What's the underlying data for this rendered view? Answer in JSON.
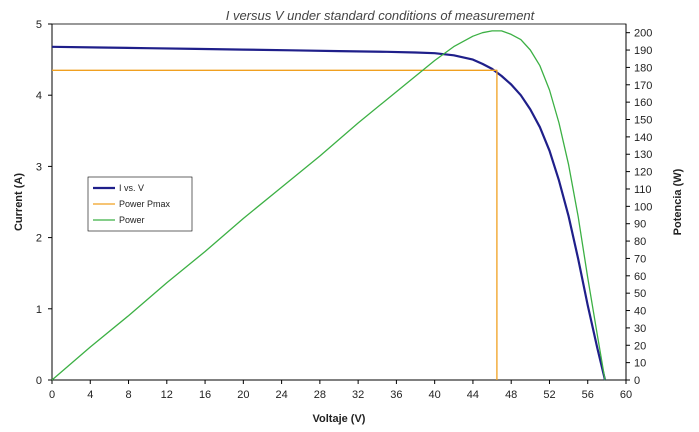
{
  "chart_data": {
    "type": "line",
    "title": "I versus V under standard conditions of measurement",
    "xlabel": "Voltaje (V)",
    "ylabel": "Current (A)",
    "y2label": "Potencia (W)",
    "xlim": [
      0,
      60
    ],
    "ylim": [
      0,
      5
    ],
    "y2lim": [
      0,
      205
    ],
    "x_ticks": [
      "0",
      "4",
      "8",
      "12",
      "16",
      "20",
      "24",
      "28",
      "32",
      "36",
      "40",
      "44",
      "48",
      "52",
      "56",
      "60"
    ],
    "y_ticks": [
      "0",
      "1",
      "2",
      "3",
      "4",
      "5"
    ],
    "y2_ticks": [
      "0",
      "10",
      "20",
      "30",
      "40",
      "50",
      "60",
      "70",
      "80",
      "90",
      "100",
      "110",
      "120",
      "130",
      "140",
      "150",
      "160",
      "170",
      "180",
      "190",
      "200"
    ],
    "grid": false,
    "legend_position": "left-middle",
    "series": [
      {
        "name": "I vs. V",
        "axis": "left",
        "color": "#1f1f8a",
        "x": [
          0,
          5,
          10,
          15,
          20,
          25,
          30,
          35,
          38,
          40,
          42,
          44,
          45,
          46,
          47,
          48,
          49,
          50,
          51,
          52,
          53,
          54,
          55,
          56,
          57,
          57.8
        ],
        "y": [
          4.68,
          4.67,
          4.66,
          4.65,
          4.64,
          4.63,
          4.62,
          4.61,
          4.6,
          4.59,
          4.56,
          4.5,
          4.44,
          4.37,
          4.27,
          4.15,
          4.0,
          3.8,
          3.55,
          3.22,
          2.8,
          2.3,
          1.7,
          1.05,
          0.45,
          0.0
        ]
      },
      {
        "name": "Power Pmax",
        "axis": "left",
        "color": "#f0a020",
        "x": [
          0,
          46.5,
          46.5
        ],
        "y": [
          4.35,
          4.35,
          0
        ]
      },
      {
        "name": "Power",
        "axis": "right",
        "color": "#3cb044",
        "x": [
          0,
          4,
          8,
          12,
          16,
          20,
          24,
          28,
          32,
          36,
          40,
          42,
          44,
          45,
          46,
          47,
          48,
          49,
          50,
          51,
          52,
          53,
          54,
          55,
          56,
          57,
          57.8
        ],
        "y": [
          0,
          19,
          37,
          56,
          74,
          93,
          111,
          129,
          148,
          166,
          184,
          192,
          198,
          200,
          201,
          201,
          199,
          196,
          190,
          181,
          167,
          148,
          124,
          94,
          59,
          26,
          0
        ]
      }
    ]
  }
}
